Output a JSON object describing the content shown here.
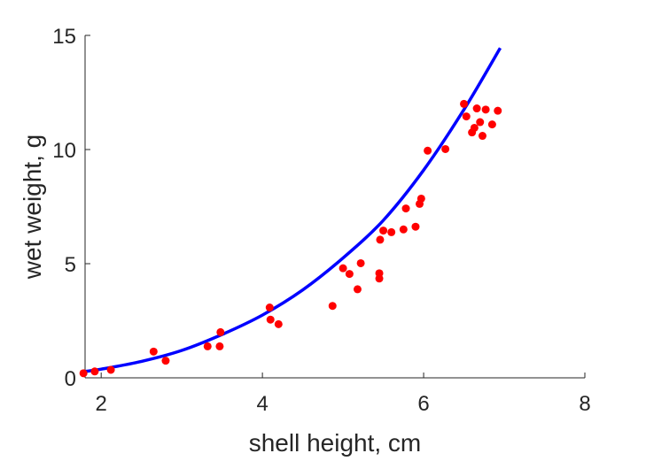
{
  "chart_data": {
    "type": "scatter",
    "xlabel": "shell height, cm",
    "ylabel": "wet weight, g",
    "xlim": [
      1.8,
      8
    ],
    "ylim": [
      0,
      15
    ],
    "xticks": [
      2,
      4,
      6,
      8
    ],
    "yticks": [
      0,
      5,
      10,
      15
    ],
    "grid": false,
    "series": [
      {
        "type": "scatter",
        "color": "#ff0000",
        "points": [
          [
            1.78,
            0.2
          ],
          [
            1.92,
            0.28
          ],
          [
            2.12,
            0.35
          ],
          [
            2.65,
            1.15
          ],
          [
            2.8,
            0.75
          ],
          [
            3.32,
            1.38
          ],
          [
            3.47,
            1.38
          ],
          [
            3.48,
            2.0
          ],
          [
            4.09,
            3.08
          ],
          [
            4.1,
            2.55
          ],
          [
            4.2,
            2.35
          ],
          [
            4.87,
            3.15
          ],
          [
            5.0,
            4.8
          ],
          [
            5.08,
            4.55
          ],
          [
            5.18,
            3.88
          ],
          [
            5.22,
            5.02
          ],
          [
            5.45,
            4.35
          ],
          [
            5.45,
            4.58
          ],
          [
            5.46,
            6.05
          ],
          [
            5.5,
            6.45
          ],
          [
            5.6,
            6.38
          ],
          [
            5.75,
            6.5
          ],
          [
            5.78,
            7.42
          ],
          [
            5.9,
            6.62
          ],
          [
            5.95,
            7.62
          ],
          [
            5.97,
            7.85
          ],
          [
            6.05,
            9.95
          ],
          [
            6.27,
            10.02
          ],
          [
            6.5,
            12.0
          ],
          [
            6.53,
            11.45
          ],
          [
            6.6,
            10.75
          ],
          [
            6.63,
            10.95
          ],
          [
            6.66,
            11.8
          ],
          [
            6.7,
            11.2
          ],
          [
            6.73,
            10.6
          ],
          [
            6.77,
            11.75
          ],
          [
            6.85,
            11.1
          ],
          [
            6.92,
            11.7
          ]
        ]
      },
      {
        "type": "line",
        "color": "#0000ff",
        "points": [
          [
            1.8,
            0.28
          ],
          [
            2.0,
            0.38
          ],
          [
            2.5,
            0.72
          ],
          [
            3.0,
            1.2
          ],
          [
            3.5,
            1.9
          ],
          [
            4.0,
            2.75
          ],
          [
            4.5,
            3.85
          ],
          [
            5.0,
            5.25
          ],
          [
            5.5,
            6.9
          ],
          [
            6.0,
            9.1
          ],
          [
            6.5,
            11.75
          ],
          [
            6.95,
            14.45
          ]
        ]
      }
    ]
  }
}
